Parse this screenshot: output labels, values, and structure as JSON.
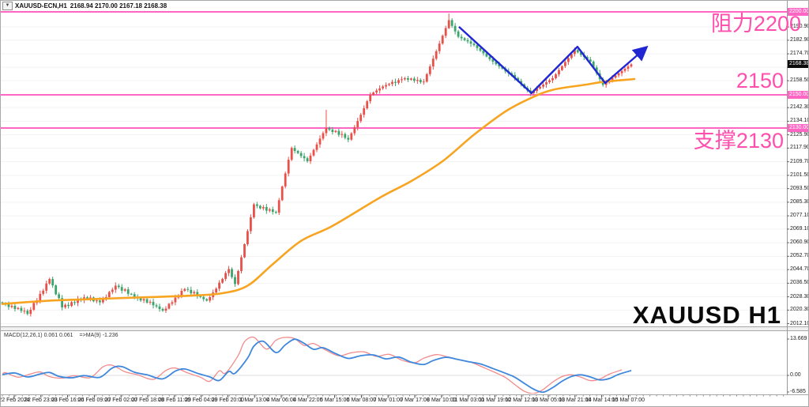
{
  "window": {
    "dropdown_icon": "▼",
    "symbol": "XAUUSD-ECN,H1",
    "ohlc": "2168.94 2170.00 2167.18 2168.38"
  },
  "colors": {
    "candle_up": "#e8504a",
    "candle_down": "#3aa46c",
    "ma_line": "#f7a421",
    "trendline": "#2026d2",
    "pink_line": "#ff66c4",
    "pink_text": "#ff4fae",
    "macd_main": "#3d87dd",
    "macd_signal": "#f28b8b",
    "grid": "#f2f2f2",
    "frame": "#a8a8a8",
    "current_badge_bg": "#0c0c0c"
  },
  "annotations": {
    "resistance": "阻力2200",
    "mid_level": "2150",
    "support": "支撑2130",
    "watermark": "XAUUSD H1"
  },
  "price_axis": {
    "ticks": [
      "2190.90",
      "2182.90",
      "2174.70",
      "2166.60",
      "2158.50",
      "2142.30",
      "2134.10",
      "2125.90",
      "2117.90",
      "2109.70",
      "2101.50",
      "2093.50",
      "2085.30",
      "2077.10",
      "2069.10",
      "2060.90",
      "2052.70",
      "2044.70",
      "2036.50",
      "2028.30",
      "2020.30",
      "2012.10"
    ],
    "badges": {
      "resistance": "2200.00",
      "mid": "2150.00",
      "support": "2130.00",
      "current": "2168.38"
    }
  },
  "macd_panel": {
    "name": "MACD(12,26,1) 0.061 0.061",
    "ma_label": "=>MA(9) -1.236",
    "axis_top": "13.669",
    "axis_zero": "0.00",
    "axis_bottom": "-6.585"
  },
  "time_axis": {
    "labels": [
      "22 Feb 2024",
      "22 Feb 23:00",
      "23 Feb 16:00",
      "26 Feb 09:00",
      "27 Feb 02:00",
      "27 Feb 18:00",
      "28 Feb 11:00",
      "29 Feb 04:00",
      "29 Feb 20:00",
      "1 Mar 13:00",
      "4 Mar 06:00",
      "4 Mar 22:00",
      "5 Mar 15:00",
      "6 Mar 08:00",
      "7 Mar 01:00",
      "7 Mar 17:00",
      "8 Mar 10:00",
      "11 Mar 03:00",
      "11 Mar 19:00",
      "12 Mar 12:00",
      "13 Mar 05:00",
      "13 Mar 21:00",
      "14 Mar 14:00",
      "15 Mar 07:00"
    ],
    "end_label": "15 Mar 07:00"
  },
  "chart_data": {
    "type": "candlestick",
    "symbol": "XAUUSD",
    "timeframe": "H1",
    "title": "XAUUSD-ECN,H1",
    "ylim": [
      2012.1,
      2204.0
    ],
    "current_price": 2168.38,
    "hlines": [
      {
        "price": 2200,
        "label": "2200.00",
        "role": "resistance"
      },
      {
        "price": 2150,
        "label": "2150.00",
        "role": "mid"
      },
      {
        "price": 2130,
        "label": "2130.00",
        "role": "support"
      }
    ],
    "candles": {
      "closes": [
        2024.0,
        2023.8,
        2022.2,
        2022.9,
        2021.0,
        2021.6,
        2019.8,
        2019.9,
        2018.0,
        2020.5,
        2024.6,
        2026.2,
        2030.1,
        2032.0,
        2036.3,
        2039.0,
        2035.2,
        2029.8,
        2027.5,
        2022.0,
        2023.5,
        2022.8,
        2025.1,
        2024.6,
        2026.8,
        2026.2,
        2028.0,
        2027.0,
        2027.9,
        2025.6,
        2026.1,
        2025.0,
        2027.4,
        2028.1,
        2031.2,
        2032.6,
        2035.0,
        2034.2,
        2032.0,
        2032.8,
        2030.1,
        2029.9,
        2028.0,
        2027.6,
        2026.1,
        2026.9,
        2024.8,
        2025.3,
        2023.2,
        2022.5,
        2021.0,
        2020.0,
        2021.2,
        2024.1,
        2025.0,
        2027.8,
        2029.1,
        2031.9,
        2033.0,
        2032.5,
        2030.4,
        2031.2,
        2028.8,
        2028.2,
        2026.9,
        2026.0,
        2028.1,
        2030.9,
        2033.2,
        2036.8,
        2039.1,
        2042.6,
        2045.0,
        2040.2,
        2036.0,
        2043.8,
        2052.1,
        2060.0,
        2067.9,
        2076.2,
        2084.0,
        2083.1,
        2081.6,
        2082.4,
        2080.2,
        2081.0,
        2079.5,
        2079.0,
        2086.5,
        2094.8,
        2102.6,
        2110.9,
        2118.0,
        2116.2,
        2114.9,
        2113.1,
        2111.8,
        2110.0,
        2113.4,
        2116.8,
        2120.1,
        2123.6,
        2126.9,
        2130.0,
        2129.0,
        2127.6,
        2128.3,
        2125.9,
        2126.4,
        2124.1,
        2123.0,
        2126.8,
        2130.5,
        2134.2,
        2138.0,
        2141.9,
        2146.1,
        2150.0,
        2151.4,
        2152.6,
        2153.9,
        2155.0,
        2155.9,
        2156.5,
        2157.8,
        2157.2,
        2158.9,
        2159.4,
        2160.0,
        2159.1,
        2159.8,
        2158.4,
        2159.0,
        2157.6,
        2158.0,
        2162.5,
        2167.1,
        2171.8,
        2176.3,
        2180.9,
        2185.6,
        2190.2,
        2195.0,
        2191.5,
        2188.2,
        2185.0,
        2184.1,
        2183.0,
        2182.2,
        2180.8,
        2180.0,
        2178.2,
        2176.6,
        2175.0,
        2173.1,
        2171.5,
        2170.0,
        2168.5,
        2167.2,
        2165.8,
        2164.1,
        2163.0,
        2162.0,
        2160.1,
        2158.3,
        2156.4,
        2154.2,
        2152.6,
        2151.0,
        2152.3,
        2153.8,
        2154.9,
        2156.2,
        2157.6,
        2158.8,
        2160.0,
        2162.4,
        2164.9,
        2167.3,
        2169.8,
        2172.2,
        2174.6,
        2177.0,
        2175.6,
        2174.1,
        2172.8,
        2171.3,
        2170.0,
        2166.5,
        2163.0,
        2159.4,
        2156.0,
        2157.4,
        2158.9,
        2160.3,
        2161.7,
        2163.0,
        2164.4,
        2165.7,
        2167.1,
        2168.4
      ],
      "wick_overrides": {
        "103": 2141.0,
        "142": 2199.0
      }
    },
    "ma_points": [
      [
        0,
        2024
      ],
      [
        15,
        2026
      ],
      [
        30,
        2027
      ],
      [
        45,
        2028
      ],
      [
        60,
        2029
      ],
      [
        70,
        2030.5
      ],
      [
        78,
        2035
      ],
      [
        86,
        2048
      ],
      [
        95,
        2062
      ],
      [
        105,
        2071
      ],
      [
        120,
        2088
      ],
      [
        130,
        2098
      ],
      [
        140,
        2110
      ],
      [
        150,
        2126
      ],
      [
        160,
        2140
      ],
      [
        168,
        2148
      ],
      [
        175,
        2153
      ],
      [
        185,
        2156
      ],
      [
        192,
        2158
      ],
      [
        201,
        2159.5
      ]
    ],
    "trendline": [
      [
        145.2,
        2191
      ],
      [
        168.3,
        2151
      ],
      [
        182.9,
        2179
      ],
      [
        191.7,
        2157.1
      ],
      [
        204.5,
        2178.1
      ]
    ],
    "macd_points": [
      [
        0,
        0.3
      ],
      [
        4,
        0.9
      ],
      [
        8,
        -0.6
      ],
      [
        12,
        0.5
      ],
      [
        15,
        1.1
      ],
      [
        18,
        -0.4
      ],
      [
        22,
        -0.9
      ],
      [
        26,
        -0.1
      ],
      [
        31,
        -0.7
      ],
      [
        35,
        2.8
      ],
      [
        38,
        3.3
      ],
      [
        42,
        1.2
      ],
      [
        46,
        0.2
      ],
      [
        51,
        -1.3
      ],
      [
        55,
        1.6
      ],
      [
        58,
        2.4
      ],
      [
        62,
        0.8
      ],
      [
        66,
        -0.6
      ],
      [
        69,
        -1.9
      ],
      [
        72,
        1.5
      ],
      [
        74,
        0.8
      ],
      [
        78,
        6.5
      ],
      [
        80,
        11.0
      ],
      [
        83,
        12.8
      ],
      [
        87,
        8.6
      ],
      [
        90,
        11.5
      ],
      [
        93,
        13.6
      ],
      [
        96,
        12.0
      ],
      [
        99,
        9.8
      ],
      [
        102,
        10.4
      ],
      [
        106,
        8.2
      ],
      [
        110,
        6.4
      ],
      [
        114,
        7.4
      ],
      [
        118,
        7.7
      ],
      [
        122,
        6.2
      ],
      [
        126,
        6.9
      ],
      [
        130,
        5.0
      ],
      [
        134,
        4.1
      ],
      [
        137,
        5.6
      ],
      [
        141,
        6.8
      ],
      [
        144,
        6.2
      ],
      [
        148,
        5.2
      ],
      [
        152,
        4.3
      ],
      [
        156,
        2.6
      ],
      [
        160,
        0.8
      ],
      [
        163,
        -0.7
      ],
      [
        166,
        -3.0
      ],
      [
        169,
        -5.2
      ],
      [
        172,
        -6.3
      ],
      [
        175,
        -4.6
      ],
      [
        178,
        -2.2
      ],
      [
        181,
        -0.4
      ],
      [
        184,
        0.2
      ],
      [
        187,
        -0.6
      ],
      [
        190,
        -1.7
      ],
      [
        193,
        -1.2
      ],
      [
        196,
        0.4
      ],
      [
        200,
        1.8
      ]
    ],
    "macd_ylim": [
      -6.585,
      13.669
    ]
  }
}
